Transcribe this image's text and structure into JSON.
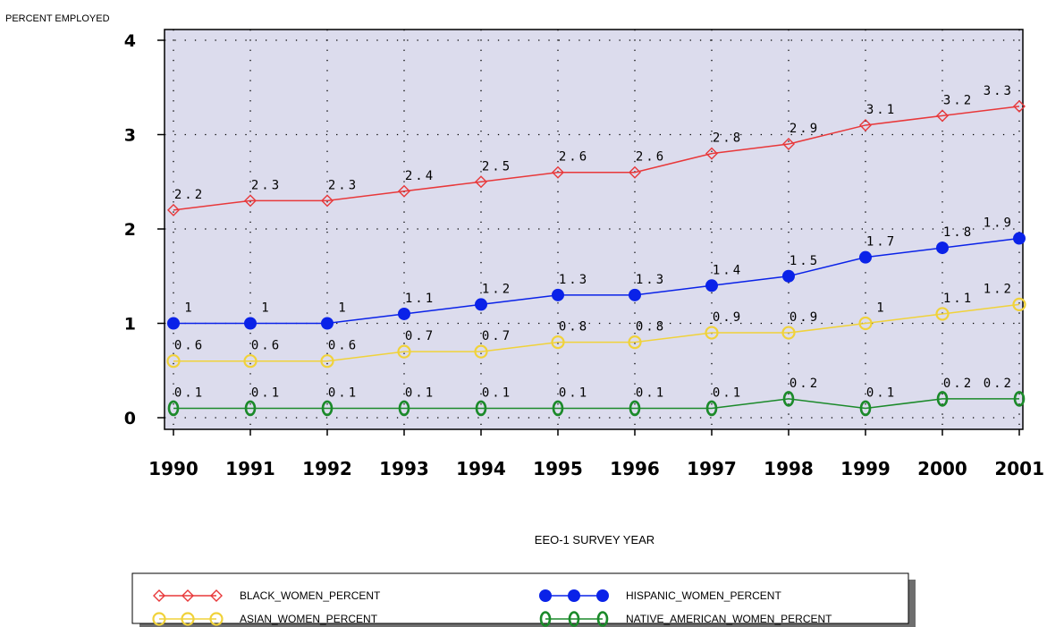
{
  "chart_data": {
    "type": "line",
    "ylabel": "PERCENT EMPLOYED",
    "xlabel": "EEO-1 SURVEY YEAR",
    "x": [
      "1990",
      "1991",
      "1992",
      "1993",
      "1994",
      "1995",
      "1996",
      "1997",
      "1998",
      "1999",
      "2000",
      "2001"
    ],
    "ylim": [
      0,
      4
    ],
    "yticks": [
      "0",
      "1",
      "2",
      "3",
      "4"
    ],
    "grid": true,
    "legend_position": "bottom",
    "series": [
      {
        "name": "BLACK_WOMEN_PERCENT",
        "color": "#e8383a",
        "marker": "diamond",
        "values": [
          2.2,
          2.3,
          2.3,
          2.4,
          2.5,
          2.6,
          2.6,
          2.8,
          2.9,
          3.1,
          3.2,
          3.3
        ],
        "labels": [
          "2.2",
          "2.3",
          "2.3",
          "2.4",
          "2.5",
          "2.6",
          "2.6",
          "2.8",
          "2.9",
          "3.1",
          "3.2",
          "3.3"
        ]
      },
      {
        "name": "HISPANIC_WOMEN_PERCENT",
        "color": "#0a22e8",
        "marker": "dot",
        "values": [
          1,
          1,
          1,
          1.1,
          1.2,
          1.3,
          1.3,
          1.4,
          1.5,
          1.7,
          1.8,
          1.9
        ],
        "labels": [
          "1",
          "1",
          "1",
          "1.1",
          "1.2",
          "1.3",
          "1.3",
          "1.4",
          "1.5",
          "1.7",
          "1.8",
          "1.9"
        ]
      },
      {
        "name": "ASIAN_WOMEN_PERCENT",
        "color": "#f0d23a",
        "marker": "circle",
        "values": [
          0.6,
          0.6,
          0.6,
          0.7,
          0.7,
          0.8,
          0.8,
          0.9,
          0.9,
          1,
          1.1,
          1.2
        ],
        "labels": [
          "0.6",
          "0.6",
          "0.6",
          "0.7",
          "0.7",
          "0.8",
          "0.8",
          "0.9",
          "0.9",
          "1",
          "1.1",
          "1.2"
        ]
      },
      {
        "name": "NATIVE_AMERICAN_WOMEN_PERCENT",
        "color": "#1b8a2a",
        "marker": "zero",
        "values": [
          0.1,
          0.1,
          0.1,
          0.1,
          0.1,
          0.1,
          0.1,
          0.1,
          0.2,
          0.1,
          0.2,
          0.2
        ],
        "labels": [
          "0.1",
          "0.1",
          "0.1",
          "0.1",
          "0.1",
          "0.1",
          "0.1",
          "0.1",
          "0.2",
          "0.1",
          "0.2",
          "0.2"
        ]
      }
    ],
    "legend": [
      {
        "series": 0
      },
      {
        "series": 1
      },
      {
        "series": 2
      },
      {
        "series": 3
      }
    ]
  }
}
